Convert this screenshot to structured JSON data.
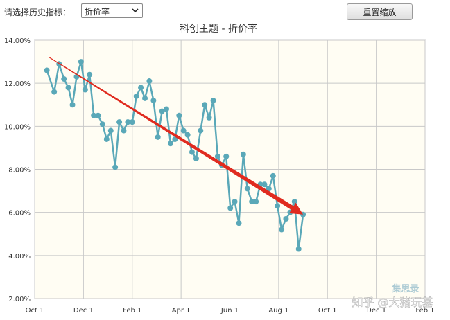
{
  "toolbar": {
    "indicator_label": "请选择历史指标：",
    "indicator_selected": "折价率",
    "reset_zoom_label": "重置缩放"
  },
  "watermarks": {
    "logo_text": "集思录",
    "credit_text": "知乎 @大猪玩基"
  },
  "colors": {
    "series": "#5aa8b8",
    "trend_arrow": "#e02b1f",
    "plot_bg": "#fffdf3",
    "grid": "#c8c8c8"
  },
  "chart_data": {
    "type": "line",
    "title": "科创主题 - 折价率",
    "x_ticks": [
      "Oct 1",
      "Dec 1",
      "Feb 1",
      "Apr 1",
      "Jun 1",
      "Aug 1",
      "Oct 1",
      "Dec 1",
      "Feb 1"
    ],
    "y_ticks": [
      "14.00%",
      "12.00%",
      "10.00%",
      "8.00%",
      "6.00%",
      "4.00%",
      "2.00%"
    ],
    "ylim": [
      2,
      14
    ],
    "xlim": [
      0,
      16
    ],
    "x_unit": "months since first Oct 1 tick",
    "grid": true,
    "legend": "none",
    "series": [
      {
        "values": [
          [
            0.5,
            12.6
          ],
          [
            0.8,
            11.6
          ],
          [
            1.0,
            12.9
          ],
          [
            1.2,
            12.2
          ],
          [
            1.38,
            11.8
          ],
          [
            1.55,
            11.0
          ],
          [
            1.72,
            12.3
          ],
          [
            1.9,
            13.0
          ],
          [
            2.07,
            11.7
          ],
          [
            2.25,
            12.4
          ],
          [
            2.42,
            10.5
          ],
          [
            2.6,
            10.5
          ],
          [
            2.78,
            10.1
          ],
          [
            2.95,
            9.4
          ],
          [
            3.12,
            9.8
          ],
          [
            3.3,
            8.1
          ],
          [
            3.47,
            10.2
          ],
          [
            3.65,
            9.8
          ],
          [
            3.82,
            10.2
          ],
          [
            4.0,
            10.2
          ],
          [
            4.17,
            11.4
          ],
          [
            4.35,
            11.8
          ],
          [
            4.52,
            11.3
          ],
          [
            4.7,
            12.1
          ],
          [
            4.87,
            11.2
          ],
          [
            5.05,
            9.5
          ],
          [
            5.22,
            10.7
          ],
          [
            5.4,
            10.8
          ],
          [
            5.57,
            9.2
          ],
          [
            5.75,
            9.4
          ],
          [
            5.92,
            10.5
          ],
          [
            6.1,
            9.8
          ],
          [
            6.27,
            9.6
          ],
          [
            6.45,
            8.8
          ],
          [
            6.62,
            8.5
          ],
          [
            6.8,
            9.8
          ],
          [
            6.97,
            11.0
          ],
          [
            7.15,
            10.4
          ],
          [
            7.32,
            11.2
          ],
          [
            7.5,
            8.6
          ],
          [
            7.67,
            8.2
          ],
          [
            7.85,
            8.6
          ],
          [
            8.02,
            6.2
          ],
          [
            8.2,
            6.5
          ],
          [
            8.37,
            5.5
          ],
          [
            8.55,
            8.7
          ],
          [
            8.72,
            7.1
          ],
          [
            8.9,
            6.5
          ],
          [
            9.07,
            6.5
          ],
          [
            9.25,
            7.3
          ],
          [
            9.42,
            7.3
          ],
          [
            9.6,
            7.1
          ],
          [
            9.77,
            7.7
          ],
          [
            9.95,
            6.3
          ],
          [
            10.12,
            5.2
          ],
          [
            10.3,
            5.7
          ],
          [
            10.47,
            6.0
          ],
          [
            10.65,
            6.5
          ],
          [
            10.82,
            4.3
          ],
          [
            11.0,
            5.9
          ]
        ]
      }
    ],
    "trend_arrow": {
      "from": [
        0.6,
        13.2
      ],
      "to": [
        11.0,
        5.9
      ]
    }
  }
}
